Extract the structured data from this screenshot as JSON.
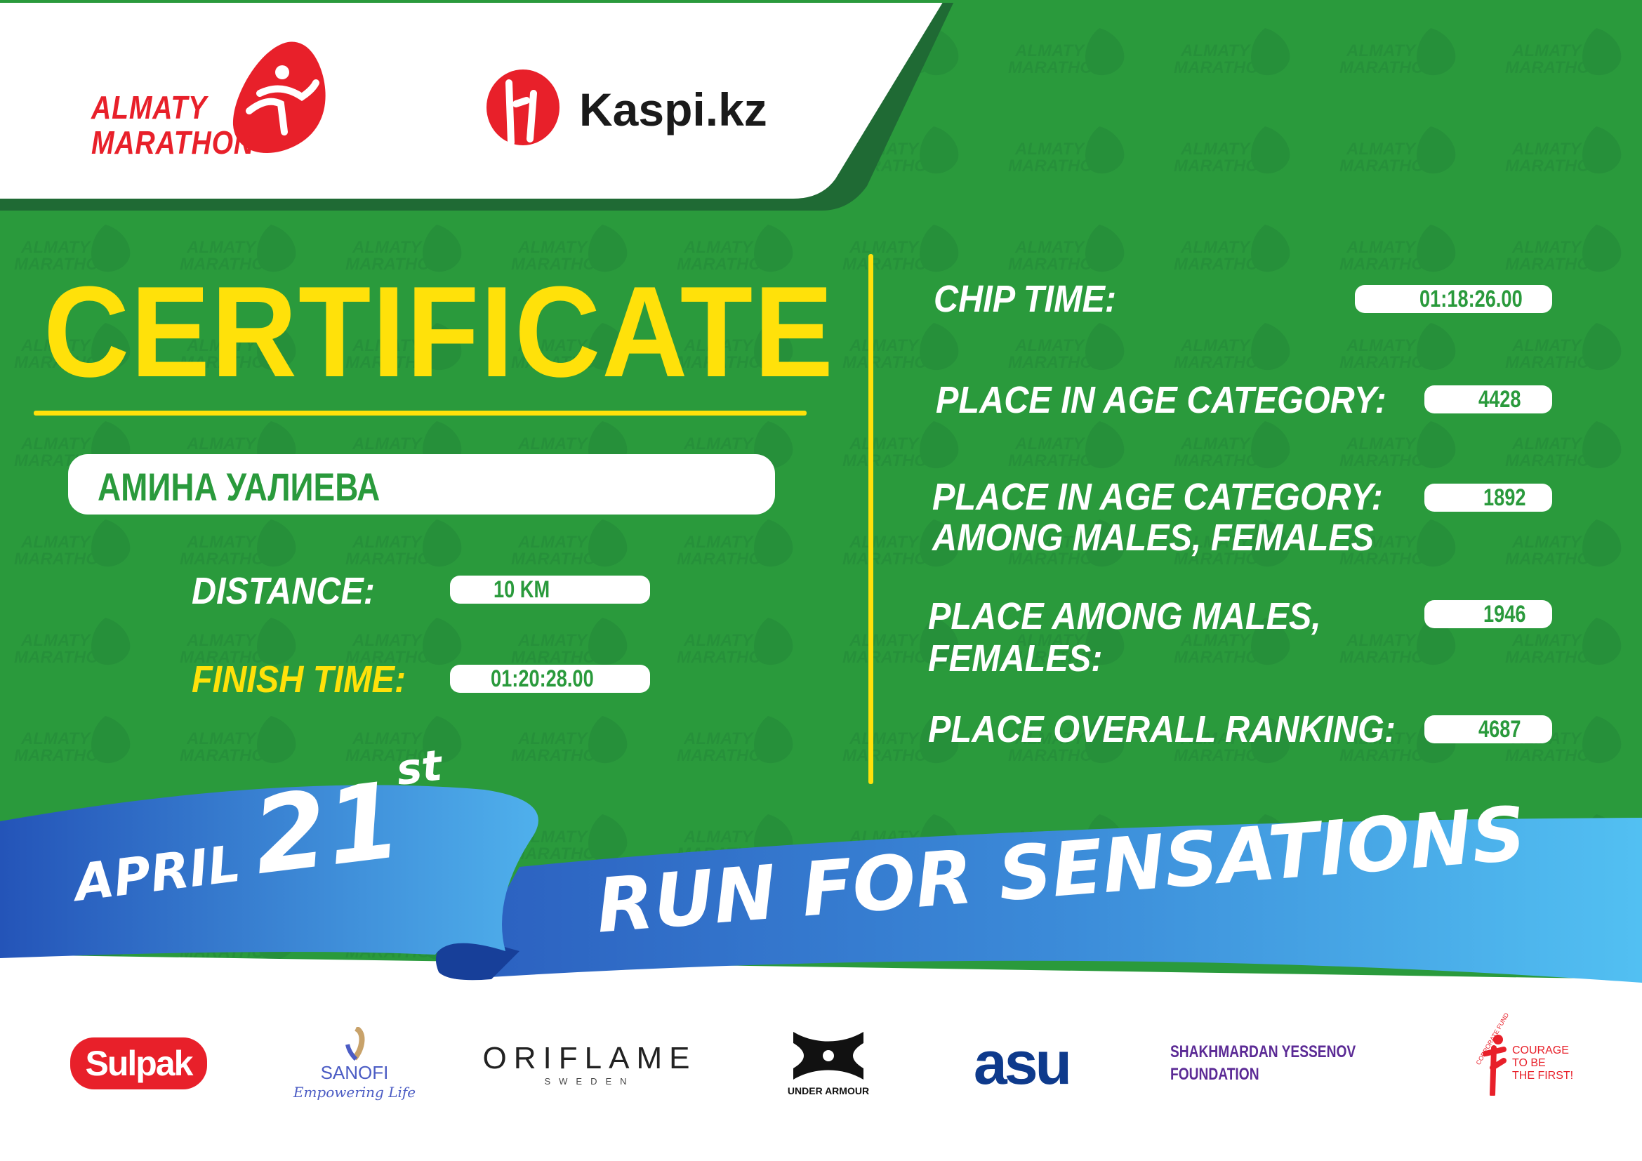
{
  "header": {
    "event_logo_text": [
      "ALMATY",
      "MARATHON"
    ],
    "sponsor_logo_text": "Kaspi.kz"
  },
  "certificate": {
    "title": "CERTIFICATE",
    "participant_name": "АМИНА УАЛИЕВА",
    "distance_label": "DISTANCE:",
    "distance_value": "10 KM",
    "finish_time_label": "FINISH TIME:",
    "finish_time_value": "01:20:28.00"
  },
  "results": {
    "chip_time_label": "CHIP TIME:",
    "chip_time_value": "01:18:26.00",
    "age_category_label": "PLACE IN AGE CATEGORY:",
    "age_category_value": "4428",
    "age_category_gender_label_1": "PLACE IN AGE CATEGORY:",
    "age_category_gender_label_2": "AMONG MALES, FEMALES",
    "age_category_gender_value": "1892",
    "gender_label_1": "PLACE AMONG MALES,",
    "gender_label_2": "FEMALES:",
    "gender_value": "1946",
    "overall_label": "PLACE OVERALL RANKING:",
    "overall_value": "4687"
  },
  "ribbon": {
    "month": "APRIL",
    "day": "21",
    "suffix": "st",
    "slogan": "RUN FOR SENSATIONS"
  },
  "sponsors": {
    "sulpak": "Sulpak",
    "sanofi": "SANOFI",
    "sanofi_tagline": "Empowering Life",
    "oriflame": "ORIFLAME",
    "oriflame_sub": "SWEDEN",
    "under_armour": "UNDER ARMOUR",
    "asu": "asu",
    "yessenov_1": "SHAKHMARDAN YESSENOV",
    "yessenov_2": "FOUNDATION",
    "courage_fund_arc": "CORPORATE FUND",
    "courage_1": "COURAGE",
    "courage_2": "TO BE",
    "courage_3": "THE FIRST!"
  },
  "colors": {
    "green": "#2a9a3c",
    "dark_green": "#1f6a34",
    "yellow": "#ffe10a",
    "red": "#e8202a",
    "ribbon_blue_dark": "#2b5fbf",
    "ribbon_blue_light": "#4fb8ef"
  }
}
